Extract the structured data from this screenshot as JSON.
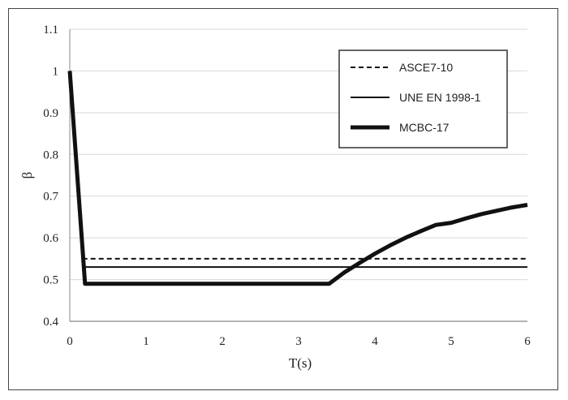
{
  "chart_data": {
    "type": "line",
    "title": "",
    "xlabel": "T(s)",
    "ylabel": "β",
    "xlim": [
      0,
      6
    ],
    "ylim": [
      0.4,
      1.1
    ],
    "x_ticks": [
      0,
      1,
      2,
      3,
      4,
      5,
      6
    ],
    "y_ticks": [
      0.4,
      0.5,
      0.6,
      0.7,
      0.8,
      0.9,
      1,
      1.1
    ],
    "y_tick_labels": [
      "0.4",
      "0.5",
      "0.6",
      "0.7",
      "0.8",
      "0.9",
      "1",
      "1.1"
    ],
    "grid": "horizontal",
    "legend_position": "top-right",
    "series": [
      {
        "name": "ASCE7-10",
        "style": "dashed",
        "x": [
          0,
          0.19,
          6
        ],
        "y": [
          1.0,
          0.55,
          0.55
        ]
      },
      {
        "name": "UNE EN 1998-1",
        "style": "solid-thin",
        "x": [
          0,
          0.19,
          6
        ],
        "y": [
          1.0,
          0.53,
          0.53
        ]
      },
      {
        "name": "MCBC-17",
        "style": "solid-thick",
        "x": [
          0,
          0.2,
          3.4,
          3.6,
          3.8,
          4.0,
          4.2,
          4.4,
          4.6,
          4.8,
          5.0,
          5.2,
          5.4,
          5.6,
          5.8,
          6.0
        ],
        "y": [
          1.0,
          0.49,
          0.49,
          0.517,
          0.54,
          0.562,
          0.582,
          0.6,
          0.616,
          0.631,
          0.636,
          0.647,
          0.657,
          0.665,
          0.673,
          0.679
        ]
      }
    ]
  }
}
